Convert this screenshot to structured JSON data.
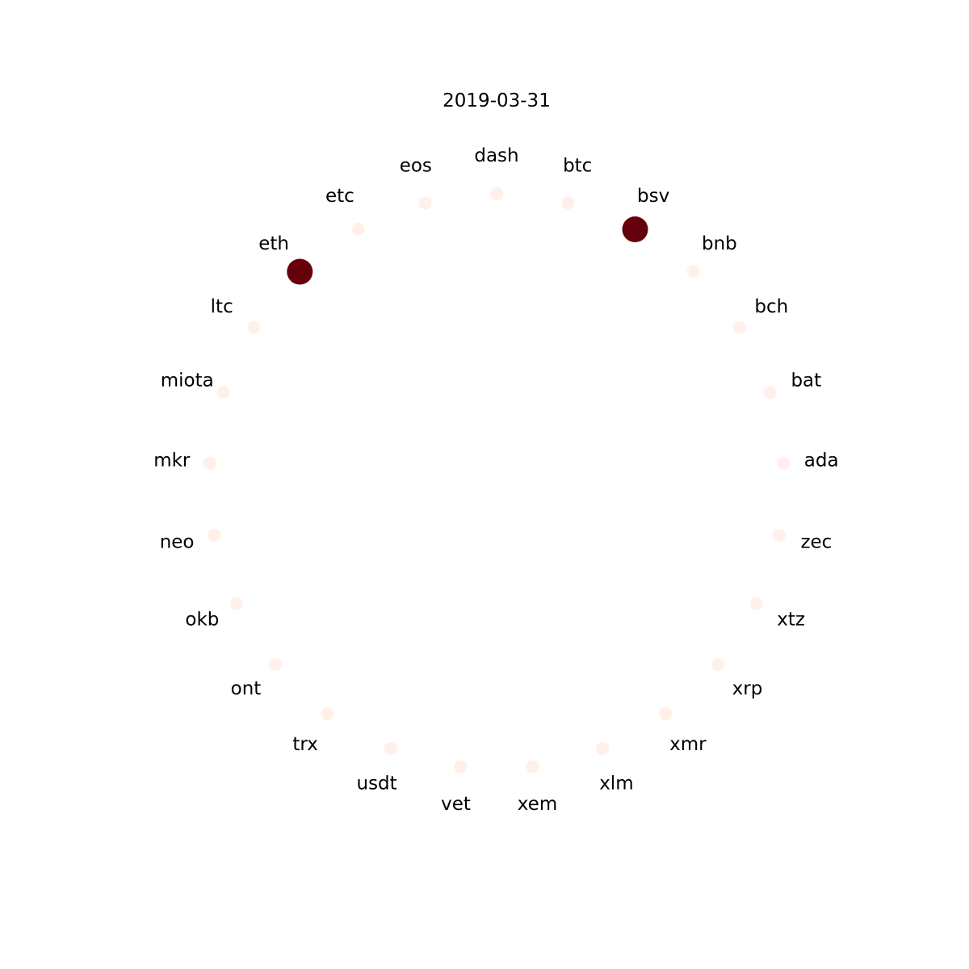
{
  "title": "2019-03-31",
  "colors": {
    "active": "#67000d",
    "inactive": "#fff0e9",
    "background": "#ffffff",
    "text": "#000000"
  },
  "nodes": [
    {
      "name": "btc",
      "active": false
    },
    {
      "name": "bsv",
      "active": true
    },
    {
      "name": "bnb",
      "active": false
    },
    {
      "name": "bch",
      "active": false
    },
    {
      "name": "bat",
      "active": false
    },
    {
      "name": "ada",
      "active": false
    },
    {
      "name": "zec",
      "active": false
    },
    {
      "name": "xtz",
      "active": false
    },
    {
      "name": "xrp",
      "active": false
    },
    {
      "name": "xmr",
      "active": false
    },
    {
      "name": "xlm",
      "active": false
    },
    {
      "name": "xem",
      "active": false
    },
    {
      "name": "vet",
      "active": false
    },
    {
      "name": "usdt",
      "active": false
    },
    {
      "name": "trx",
      "active": false
    },
    {
      "name": "ont",
      "active": false
    },
    {
      "name": "okb",
      "active": false
    },
    {
      "name": "neo",
      "active": false
    },
    {
      "name": "mkr",
      "active": false
    },
    {
      "name": "miota",
      "active": false
    },
    {
      "name": "ltc",
      "active": false
    },
    {
      "name": "eth",
      "active": true
    },
    {
      "name": "etc",
      "active": false
    },
    {
      "name": "eos",
      "active": false
    },
    {
      "name": "dash",
      "active": false
    }
  ]
}
